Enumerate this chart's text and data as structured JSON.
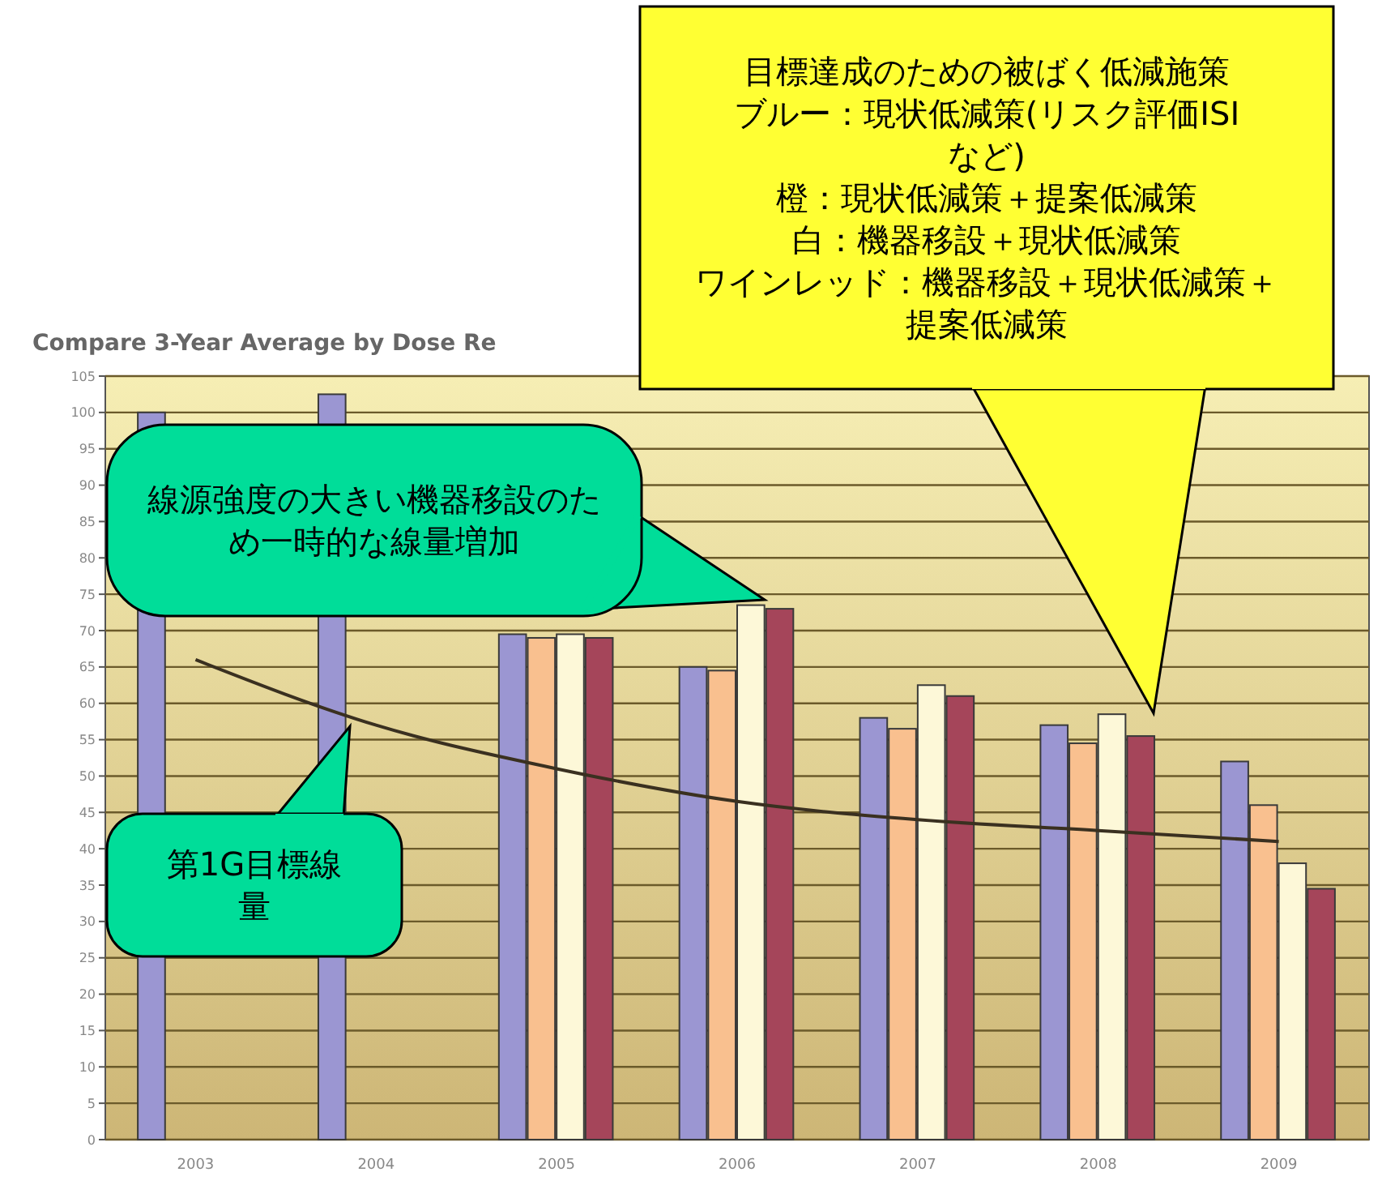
{
  "chart_data": {
    "type": "bar",
    "title": "Compare 3-Year Average by Dose Re",
    "categories": [
      "2003",
      "2004",
      "2005",
      "2006",
      "2007",
      "2008",
      "2009"
    ],
    "series": [
      {
        "color": "#9b96d2",
        "values": [
          100,
          102.5,
          69.5,
          65,
          58,
          57,
          52
        ]
      },
      {
        "color": "#f9c08f",
        "values": [
          null,
          null,
          69,
          64.5,
          56.5,
          54.5,
          46
        ]
      },
      {
        "color": "#fdf8d8",
        "values": [
          null,
          null,
          69.5,
          73.5,
          62.5,
          58.5,
          38
        ]
      },
      {
        "color": "#a5455a",
        "values": [
          null,
          null,
          69,
          73,
          61,
          55.5,
          34.5
        ]
      },
      {
        "type": "line",
        "color": "#3a3020",
        "values": [
          66,
          57,
          51,
          46.5,
          44,
          42.5,
          41
        ]
      }
    ],
    "ylim": [
      0,
      105
    ],
    "yticks": [
      0,
      5,
      10,
      15,
      20,
      25,
      30,
      35,
      40,
      45,
      50,
      55,
      60,
      65,
      70,
      75,
      80,
      85,
      90,
      95,
      100,
      105
    ],
    "grid": "y",
    "annotations": [
      "目標達成のための被ばく低減施策",
      "ブルー：現状低減策(リスク評価ISI など)",
      "橙：現状低減策＋提案低減策",
      "白：機器移設＋現状低減策",
      "ワインレッド：機器移設＋現状低減策＋提案低減策",
      "線源強度の大きい機器移設のため一時的な線量増加",
      "第1G目標線量"
    ]
  }
}
